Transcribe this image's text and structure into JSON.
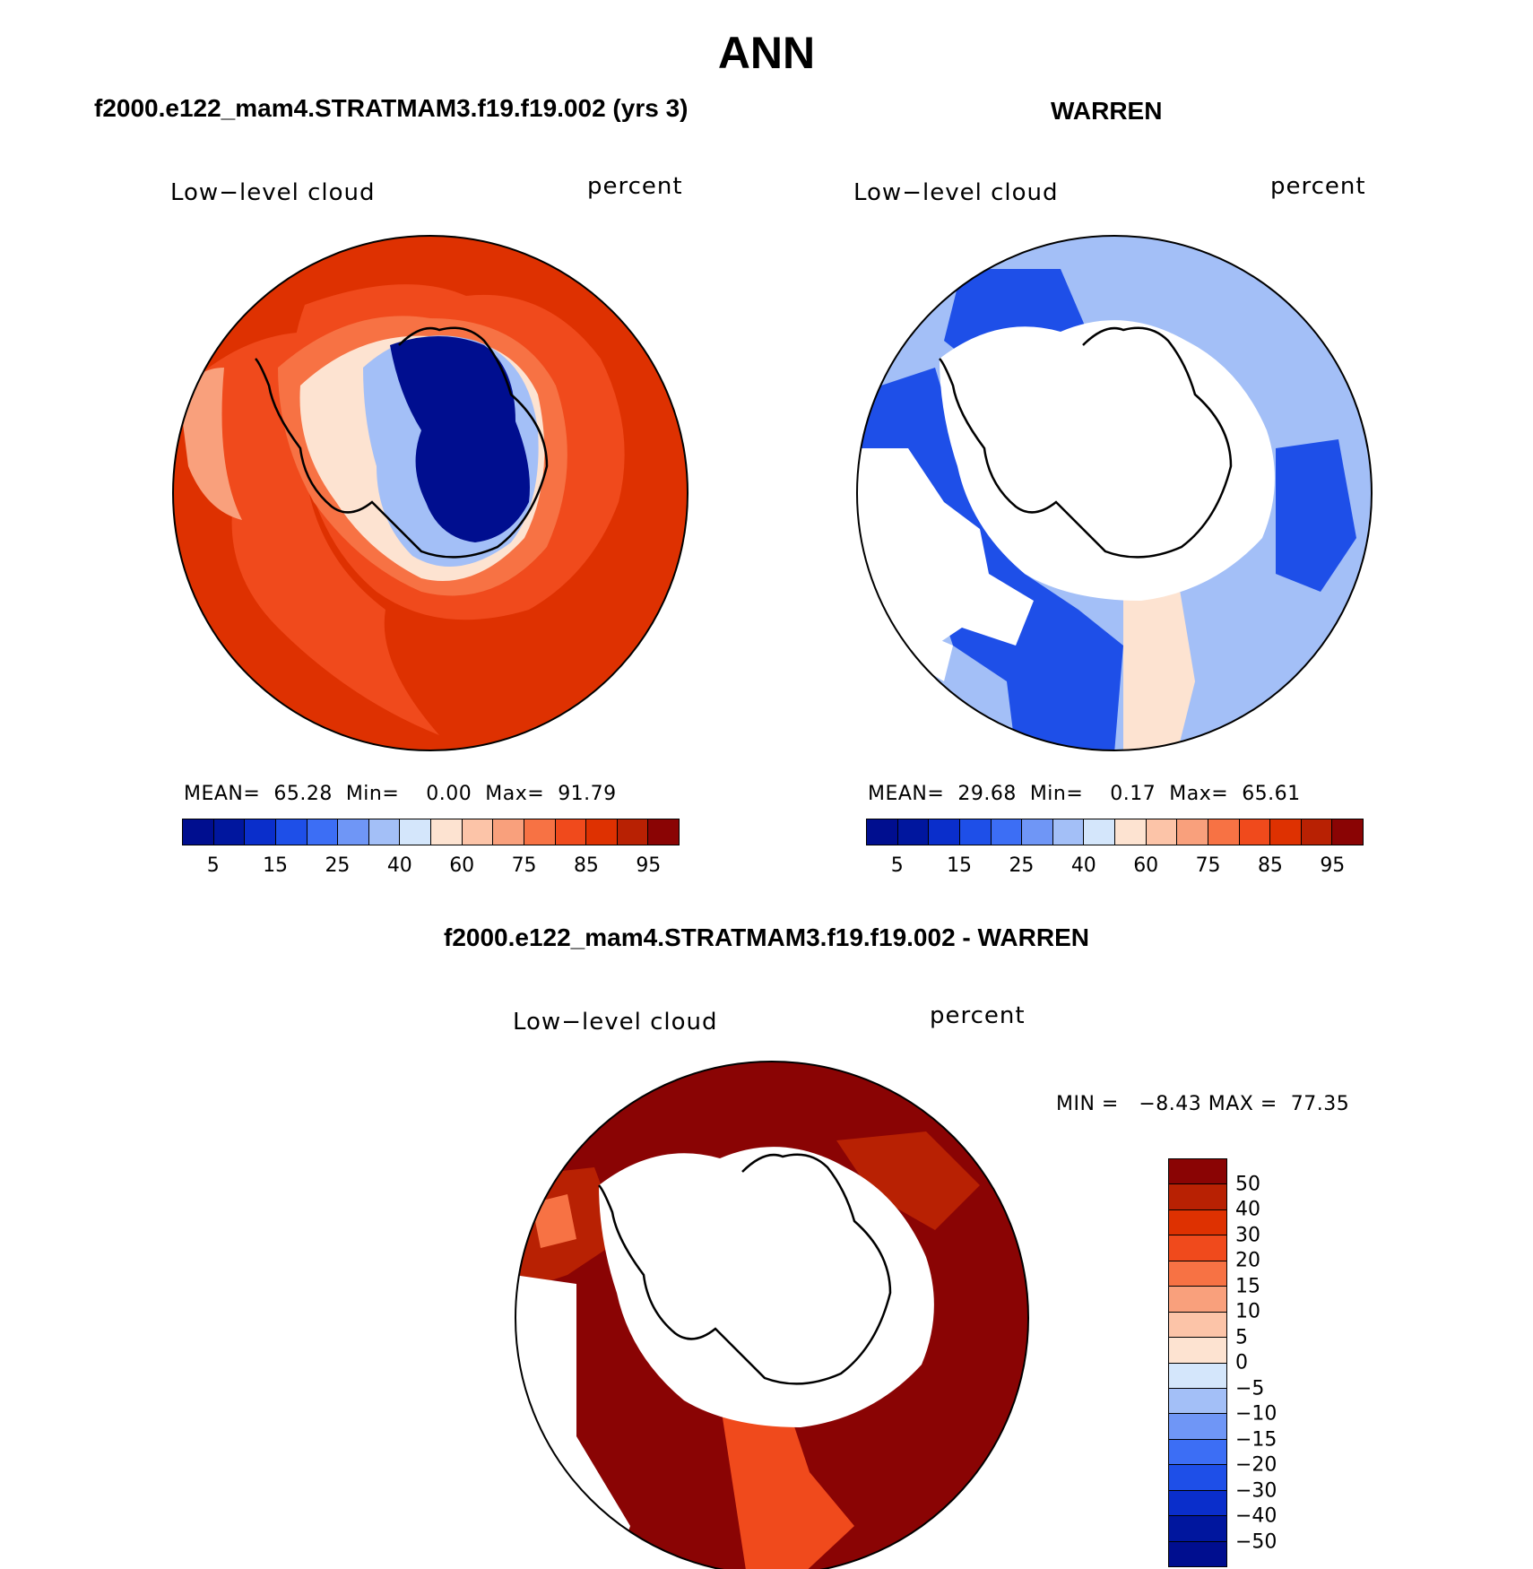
{
  "title": "ANN",
  "panels": [
    {
      "title": "f2000.e122_mam4.STRATMAM3.f19.f19.002 (yrs 3)",
      "variable": "Low−level cloud",
      "units": "percent",
      "stats": {
        "mean_label": "MEAN=",
        "mean": "65.28",
        "min_label": "Min=",
        "min": "0.00",
        "max_label": "Max=",
        "max": "91.79"
      }
    },
    {
      "title": "WARREN",
      "variable": "Low−level cloud",
      "units": "percent",
      "stats": {
        "mean_label": "MEAN=",
        "mean": "29.68",
        "min_label": "Min=",
        "min": "0.17",
        "max_label": "Max=",
        "max": "65.61"
      }
    },
    {
      "title": "f2000.e122_mam4.STRATMAM3.f19.f19.002 - WARREN",
      "variable": "Low−level cloud",
      "units": "percent",
      "minmax": {
        "min_label": "MIN =",
        "min": "−8.43",
        "max_label": "MAX =",
        "max": "77.35"
      }
    }
  ],
  "colorbar_abs": {
    "colors": [
      "#000e8f",
      "#00169e",
      "#0a2ecb",
      "#1e4fe8",
      "#3c6ef5",
      "#6f96f6",
      "#a3bff7",
      "#d4e6fb",
      "#fde3d1",
      "#fcc4a8",
      "#f9a07c",
      "#f77244",
      "#f04a1c",
      "#de3101",
      "#b82103",
      "#8a0404"
    ],
    "tick_labels": [
      "5",
      "15",
      "25",
      "40",
      "60",
      "75",
      "85",
      "95"
    ]
  },
  "colorbar_diff": {
    "colors": [
      "#8a0404",
      "#b82103",
      "#de3101",
      "#f04a1c",
      "#f77244",
      "#f9a07c",
      "#fcc4a8",
      "#fde3d1",
      "#d4e6fb",
      "#a3bff7",
      "#6f96f6",
      "#3c6ef5",
      "#1e4fe8",
      "#0a2ecb",
      "#00169e",
      "#000e8f"
    ],
    "tick_labels": [
      "50",
      "40",
      "30",
      "20",
      "15",
      "10",
      "5",
      "0",
      "−5",
      "−10",
      "−15",
      "−20",
      "−30",
      "−40",
      "−50"
    ]
  },
  "map_colors": {
    "ocean_high": "#de3101",
    "ocean_mid": "#f04a1c",
    "ocean_lower": "#f77244",
    "ice_core": "#000e8f",
    "warren_light": "#a3bff7",
    "warren_dark": "#1e4fe8",
    "diff_dark": "#8a0404",
    "diff_mid": "#b82103"
  }
}
